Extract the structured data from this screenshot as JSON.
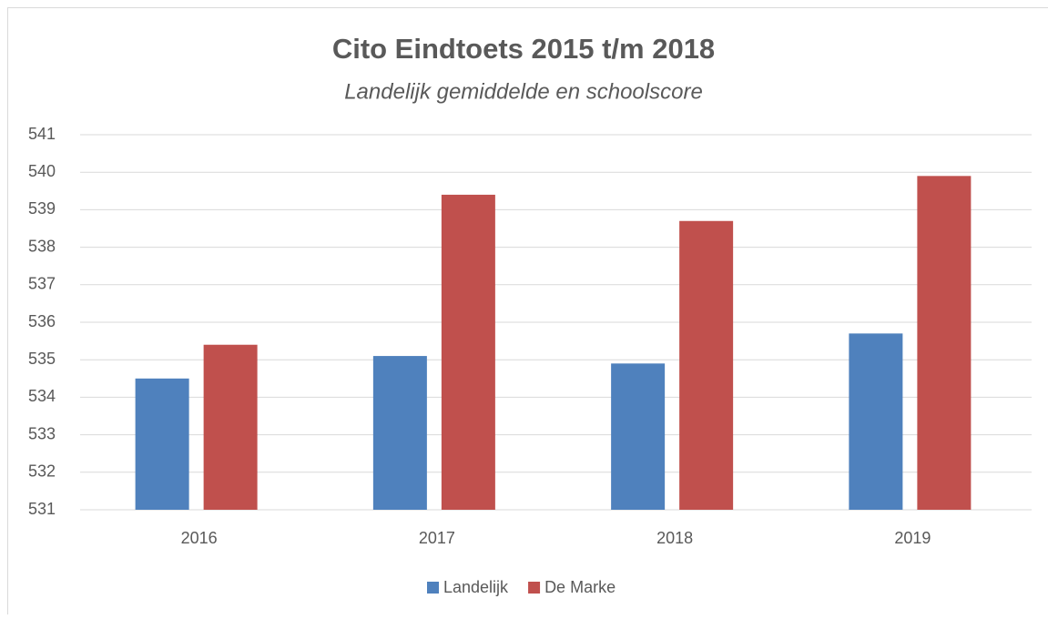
{
  "chart_data": {
    "type": "bar",
    "title": "Cito Eindtoets 2015 t/m 2018",
    "subtitle": "Landelijk gemiddelde en schoolscore",
    "categories": [
      "2016",
      "2017",
      "2018",
      "2019"
    ],
    "series": [
      {
        "name": "Landelijk",
        "color": "#4f81bd",
        "values": [
          534.5,
          535.1,
          534.9,
          535.7
        ]
      },
      {
        "name": "De Marke",
        "color": "#c0504d",
        "values": [
          535.4,
          539.4,
          538.7,
          539.9
        ]
      }
    ],
    "ylim": [
      531,
      541
    ],
    "yticks": [
      531,
      532,
      533,
      534,
      535,
      536,
      537,
      538,
      539,
      540,
      541
    ],
    "grid": true,
    "legend": "bottom"
  }
}
